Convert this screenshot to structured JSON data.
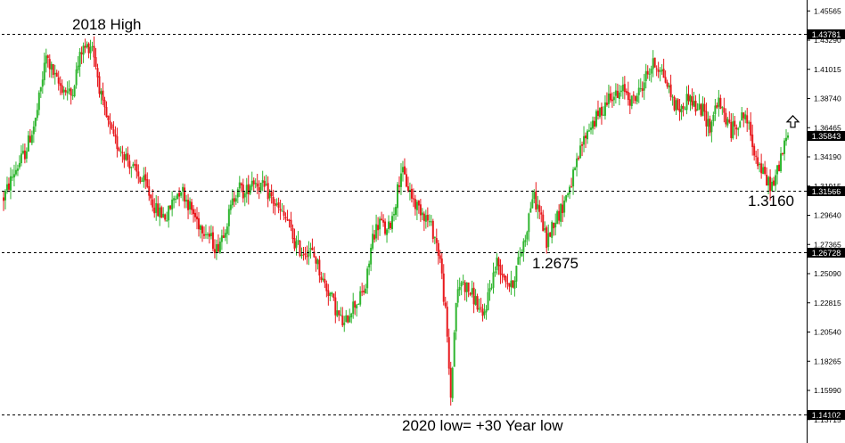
{
  "chart_data": {
    "type": "candlestick",
    "instrument_note": "",
    "y_ticks": [
      "1.45565",
      "1.43290",
      "1.41015",
      "1.38740",
      "1.36465",
      "1.34190",
      "1.31915",
      "1.29640",
      "1.27365",
      "1.25090",
      "1.22815",
      "1.20540",
      "1.18265",
      "1.15990",
      "1.13715"
    ],
    "ylim": [
      1.132,
      1.462
    ],
    "levels": [
      {
        "label": "1.43781",
        "value": 1.43781,
        "line": true
      },
      {
        "label": "1.31566",
        "value": 1.31566,
        "line": true
      },
      {
        "label": "1.26728",
        "value": 1.26728,
        "line": true
      },
      {
        "label": "1.14102",
        "value": 1.14102,
        "line": true
      },
      {
        "label": "1.35843",
        "value": 1.35843,
        "line": false
      }
    ],
    "annotations": [
      {
        "text": "2018 High"
      },
      {
        "text": "1.3160"
      },
      {
        "text": "1.2675"
      },
      {
        "text": "2020 low= +30 Year low"
      }
    ],
    "up_color": "#2fb52f",
    "down_color": "#e8181c",
    "path": [
      [
        0,
        1.31
      ],
      [
        6,
        1.33
      ],
      [
        12,
        1.345
      ],
      [
        18,
        1.37
      ],
      [
        24,
        1.42
      ],
      [
        30,
        1.4
      ],
      [
        38,
        1.39
      ],
      [
        44,
        1.425
      ],
      [
        50,
        1.43
      ],
      [
        56,
        1.38
      ],
      [
        62,
        1.355
      ],
      [
        68,
        1.345
      ],
      [
        74,
        1.33
      ],
      [
        80,
        1.32
      ],
      [
        86,
        1.3
      ],
      [
        92,
        1.295
      ],
      [
        96,
        1.31
      ],
      [
        100,
        1.318
      ],
      [
        106,
        1.3
      ],
      [
        110,
        1.29
      ],
      [
        114,
        1.285
      ],
      [
        120,
        1.27
      ],
      [
        126,
        1.292
      ],
      [
        132,
        1.32
      ],
      [
        136,
        1.312
      ],
      [
        140,
        1.325
      ],
      [
        146,
        1.318
      ],
      [
        150,
        1.312
      ],
      [
        156,
        1.298
      ],
      [
        160,
        1.292
      ],
      [
        164,
        1.275
      ],
      [
        168,
        1.268
      ],
      [
        172,
        1.27
      ],
      [
        176,
        1.262
      ],
      [
        180,
        1.245
      ],
      [
        184,
        1.235
      ],
      [
        188,
        1.22
      ],
      [
        192,
        1.21
      ],
      [
        196,
        1.225
      ],
      [
        200,
        1.23
      ],
      [
        204,
        1.24
      ],
      [
        208,
        1.28
      ],
      [
        212,
        1.292
      ],
      [
        216,
        1.282
      ],
      [
        220,
        1.3
      ],
      [
        224,
        1.332
      ],
      [
        228,
        1.318
      ],
      [
        232,
        1.305
      ],
      [
        236,
        1.3
      ],
      [
        240,
        1.29
      ],
      [
        243,
        1.28
      ],
      [
        246,
        1.262
      ],
      [
        249,
        1.22
      ],
      [
        252,
        1.155
      ],
      [
        255,
        1.23
      ],
      [
        258,
        1.245
      ],
      [
        262,
        1.238
      ],
      [
        266,
        1.23
      ],
      [
        270,
        1.215
      ],
      [
        274,
        1.24
      ],
      [
        278,
        1.26
      ],
      [
        282,
        1.25
      ],
      [
        286,
        1.24
      ],
      [
        290,
        1.26
      ],
      [
        294,
        1.28
      ],
      [
        298,
        1.312
      ],
      [
        302,
        1.3
      ],
      [
        306,
        1.275
      ],
      [
        310,
        1.292
      ],
      [
        314,
        1.3
      ],
      [
        318,
        1.315
      ],
      [
        322,
        1.33
      ],
      [
        326,
        1.352
      ],
      [
        330,
        1.365
      ],
      [
        334,
        1.372
      ],
      [
        338,
        1.38
      ],
      [
        342,
        1.392
      ],
      [
        346,
        1.388
      ],
      [
        350,
        1.395
      ],
      [
        354,
        1.385
      ],
      [
        358,
        1.392
      ],
      [
        362,
        1.405
      ],
      [
        366,
        1.414
      ],
      [
        370,
        1.412
      ],
      [
        374,
        1.398
      ],
      [
        378,
        1.383
      ],
      [
        382,
        1.378
      ],
      [
        386,
        1.39
      ],
      [
        390,
        1.38
      ],
      [
        394,
        1.378
      ],
      [
        398,
        1.365
      ],
      [
        402,
        1.385
      ],
      [
        406,
        1.375
      ],
      [
        410,
        1.362
      ],
      [
        414,
        1.37
      ],
      [
        418,
        1.375
      ],
      [
        422,
        1.352
      ],
      [
        426,
        1.335
      ],
      [
        430,
        1.322
      ],
      [
        434,
        1.32
      ],
      [
        438,
        1.342
      ],
      [
        442,
        1.358
      ]
    ]
  }
}
